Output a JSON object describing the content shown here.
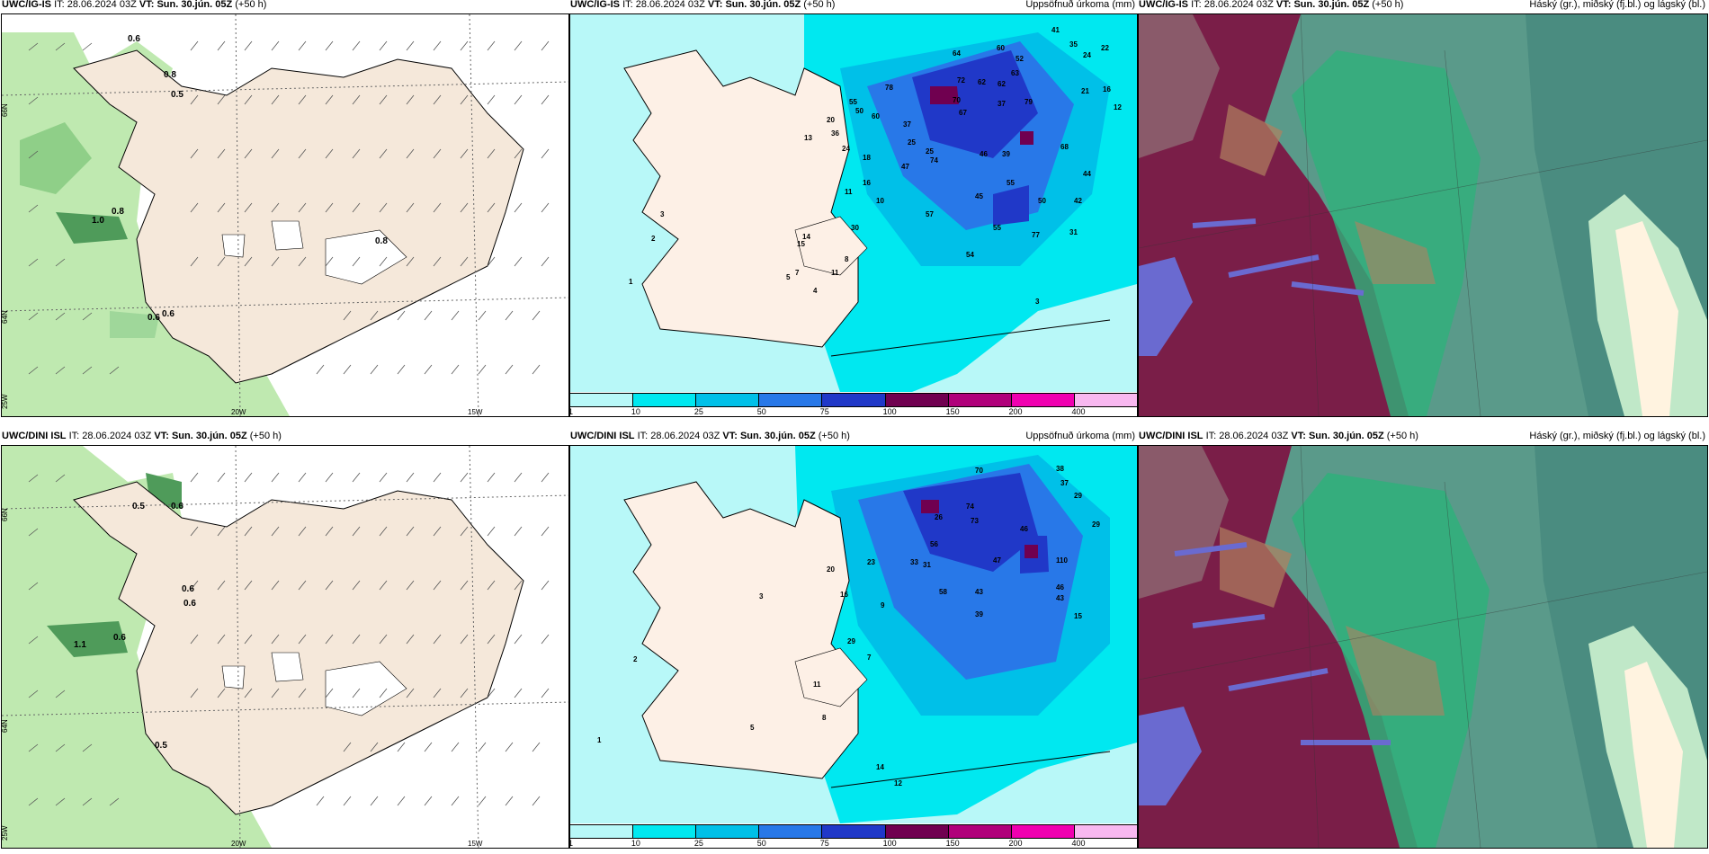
{
  "rows": [
    {
      "model": "UWC/IG-IS",
      "it_label": "IT:",
      "it_value": "28.06.2024 03Z",
      "vt_label": "VT:",
      "vt_value": "Sun. 30.jún. 05Z",
      "lead": "(+50 h)"
    },
    {
      "model": "UWC/DINI ISL",
      "it_label": "IT:",
      "it_value": "28.06.2024 03Z",
      "vt_label": "VT:",
      "vt_value": "Sun. 30.jún. 05Z",
      "lead": "(+50 h)"
    }
  ],
  "precip_title": "Uppsöfnuð úrkoma (mm)",
  "cloud_title": "Háský (gr.), miðský (fj.bl.) og lágský (bl.)",
  "wind_map_labels": {
    "lat66": "66N",
    "lat64": "64N",
    "lon25": "25W",
    "lon20": "20W",
    "lon15": "15W"
  },
  "wind_values_top": [
    "0.6",
    "0.8",
    "0.5",
    "1.0",
    "0.8",
    "0.8",
    "0.6",
    "0.6"
  ],
  "wind_values_bottom": [
    "0.5",
    "0.6",
    "0.6",
    "0.6",
    "1.1",
    "0.6",
    "0.5"
  ],
  "precip_values_top": [
    "41",
    "35",
    "24",
    "22",
    "21",
    "16",
    "12",
    "64",
    "60",
    "52",
    "72",
    "62",
    "63",
    "78",
    "70",
    "62",
    "79",
    "67",
    "37",
    "55",
    "50",
    "60",
    "37",
    "25",
    "13",
    "20",
    "36",
    "24",
    "18",
    "25",
    "16",
    "47",
    "74",
    "46",
    "39",
    "68",
    "44",
    "42",
    "31",
    "10",
    "11",
    "55",
    "57",
    "50",
    "45",
    "54",
    "30",
    "15",
    "14",
    "11",
    "8",
    "7",
    "4",
    "5",
    "3",
    "2",
    "1",
    "77",
    "55",
    "3"
  ],
  "precip_values_bottom": [
    "38",
    "37",
    "29",
    "29",
    "70",
    "74",
    "73",
    "46",
    "56",
    "33",
    "31",
    "47",
    "43",
    "110",
    "46",
    "43",
    "58",
    "39",
    "15",
    "26",
    "23",
    "20",
    "16",
    "29",
    "9",
    "7",
    "11",
    "14",
    "12",
    "8",
    "5",
    "3",
    "2",
    "1"
  ],
  "colorbar": {
    "labels": [
      "1",
      "10",
      "25",
      "50",
      "75",
      "100",
      "150",
      "200",
      "400"
    ],
    "colors": [
      "#b8f8f8",
      "#00e8f0",
      "#00c0e8",
      "#2878e8",
      "#2038c8",
      "#700050",
      "#b0007a",
      "#f000b0",
      "#f8b8f0"
    ]
  },
  "colors": {
    "land": "#f5e8da",
    "sea_wind": "#ffffff",
    "wind_green": "#bfe9b0",
    "wind_green_dark": "#4f9b5a",
    "precip_light": "#b8f8f8",
    "cloud_maroon": "#7a1e48",
    "cloud_teal": "#5a9a8a",
    "cloud_green": "#2fb07a",
    "cloud_blue": "#6a6ad0"
  }
}
